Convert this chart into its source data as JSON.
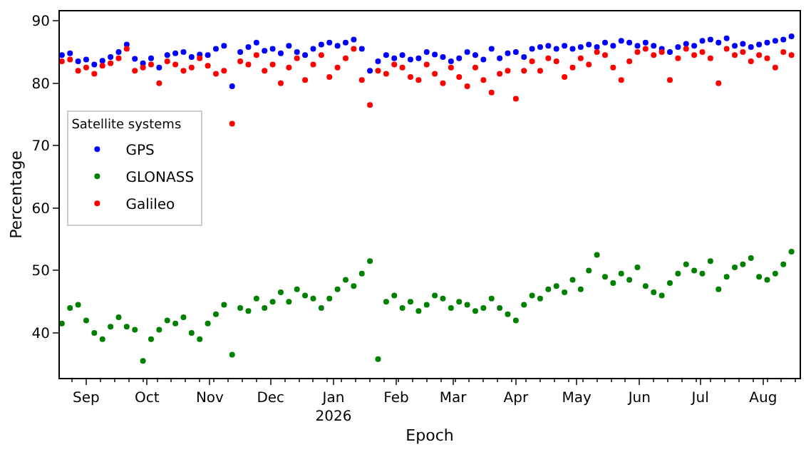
{
  "chart_data": {
    "type": "scatter",
    "xlabel": "Epoch",
    "ylabel": "Percentage",
    "legend_title": "Satellite systems",
    "legend": "top left",
    "grid": false,
    "marker": "circle",
    "xlim": [
      "2025-08-19",
      "2026-08-19"
    ],
    "xticks": [
      {
        "value": "2025-09-01",
        "label": "Sep"
      },
      {
        "value": "2025-10-01",
        "label": "Oct"
      },
      {
        "value": "2025-11-01",
        "label": "Nov"
      },
      {
        "value": "2025-12-01",
        "label": "Dec"
      },
      {
        "value": "2026-01-01",
        "label": "Jan\n2026"
      },
      {
        "value": "2026-02-01",
        "label": "Feb"
      },
      {
        "value": "2026-03-01",
        "label": "Mar"
      },
      {
        "value": "2026-04-01",
        "label": "Apr"
      },
      {
        "value": "2026-05-01",
        "label": "May"
      },
      {
        "value": "2026-06-01",
        "label": "Jun"
      },
      {
        "value": "2026-07-01",
        "label": "Jul"
      },
      {
        "value": "2026-08-01",
        "label": "Aug"
      }
    ],
    "ylim": [
      32.8,
      91.5
    ],
    "yticks": [
      40,
      50,
      60,
      70,
      80,
      90
    ],
    "x": [
      "2025-08-20",
      "2025-08-24",
      "2025-08-28",
      "2025-09-01",
      "2025-09-05",
      "2025-09-09",
      "2025-09-13",
      "2025-09-17",
      "2025-09-21",
      "2025-09-25",
      "2025-09-29",
      "2025-10-03",
      "2025-10-07",
      "2025-10-11",
      "2025-10-15",
      "2025-10-19",
      "2025-10-23",
      "2025-10-27",
      "2025-10-31",
      "2025-11-04",
      "2025-11-08",
      "2025-11-12",
      "2025-11-16",
      "2025-11-20",
      "2025-11-24",
      "2025-11-28",
      "2025-12-02",
      "2025-12-06",
      "2025-12-10",
      "2025-12-14",
      "2025-12-18",
      "2025-12-22",
      "2025-12-26",
      "2025-12-30",
      "2026-01-03",
      "2026-01-07",
      "2026-01-11",
      "2026-01-15",
      "2026-01-19",
      "2026-01-23",
      "2026-01-27",
      "2026-01-31",
      "2026-02-04",
      "2026-02-08",
      "2026-02-12",
      "2026-02-16",
      "2026-02-20",
      "2026-02-24",
      "2026-02-28",
      "2026-03-04",
      "2026-03-08",
      "2026-03-12",
      "2026-03-16",
      "2026-03-20",
      "2026-03-24",
      "2026-03-28",
      "2026-04-01",
      "2026-04-05",
      "2026-04-09",
      "2026-04-13",
      "2026-04-17",
      "2026-04-21",
      "2026-04-25",
      "2026-04-29",
      "2026-05-03",
      "2026-05-07",
      "2026-05-11",
      "2026-05-15",
      "2026-05-19",
      "2026-05-23",
      "2026-05-27",
      "2026-05-31",
      "2026-06-04",
      "2026-06-08",
      "2026-06-12",
      "2026-06-16",
      "2026-06-20",
      "2026-06-24",
      "2026-06-28",
      "2026-07-02",
      "2026-07-06",
      "2026-07-10",
      "2026-07-14",
      "2026-07-18",
      "2026-07-22",
      "2026-07-26",
      "2026-07-30",
      "2026-08-03",
      "2026-08-07",
      "2026-08-11",
      "2026-08-15"
    ],
    "series": [
      {
        "name": "GPS",
        "color": "#0000ff",
        "values": [
          84.5,
          84.8,
          83.5,
          83.8,
          83.0,
          83.6,
          84.2,
          85.0,
          86.2,
          83.9,
          83.2,
          84.0,
          82.5,
          84.5,
          84.8,
          85.0,
          84.2,
          84.6,
          84.5,
          85.5,
          86.0,
          79.5,
          85.0,
          85.8,
          86.5,
          85.2,
          85.5,
          84.8,
          86.0,
          85.0,
          84.5,
          85.5,
          86.2,
          86.5,
          86.0,
          86.5,
          87.0,
          85.5,
          82.0,
          83.5,
          84.5,
          84.0,
          84.5,
          83.8,
          84.0,
          85.0,
          84.6,
          84.2,
          83.5,
          84.0,
          85.0,
          84.5,
          83.8,
          85.5,
          84.0,
          84.8,
          85.0,
          84.2,
          85.5,
          85.8,
          86.0,
          85.5,
          86.0,
          85.5,
          85.8,
          86.2,
          85.8,
          86.5,
          86.0,
          86.8,
          86.5,
          86.0,
          86.5,
          86.0,
          85.5,
          85.0,
          85.8,
          86.3,
          86.0,
          86.8,
          87.0,
          86.5,
          87.2,
          86.0,
          86.3,
          85.8,
          86.2,
          86.5,
          86.8,
          87.0,
          87.5
        ]
      },
      {
        "name": "GLONASS",
        "color": "#008000",
        "values": [
          41.5,
          44.0,
          44.5,
          42.0,
          40.0,
          39.0,
          41.0,
          42.5,
          41.0,
          40.5,
          35.5,
          39.0,
          40.5,
          42.0,
          41.5,
          42.5,
          40.0,
          39.0,
          41.5,
          43.0,
          44.5,
          36.5,
          44.0,
          43.5,
          45.5,
          44.0,
          45.0,
          46.5,
          45.0,
          47.0,
          46.0,
          45.5,
          44.0,
          45.5,
          47.0,
          48.5,
          47.5,
          49.5,
          51.5,
          35.8,
          45.0,
          46.0,
          44.0,
          45.0,
          43.5,
          44.5,
          46.0,
          45.5,
          44.0,
          45.0,
          44.5,
          43.5,
          44.0,
          45.5,
          44.0,
          43.0,
          42.0,
          44.5,
          46.0,
          45.5,
          47.0,
          47.5,
          46.5,
          48.5,
          47.0,
          50.0,
          52.5,
          49.0,
          48.0,
          49.5,
          48.5,
          50.5,
          47.5,
          46.5,
          46.0,
          48.0,
          49.5,
          51.0,
          50.0,
          49.5,
          51.5,
          47.0,
          49.0,
          50.5,
          51.0,
          52.0,
          49.0,
          48.5,
          49.5,
          51.0,
          53.0
        ]
      },
      {
        "name": "Galileo",
        "color": "#ff0000",
        "values": [
          83.5,
          83.8,
          82.0,
          82.5,
          81.5,
          82.8,
          83.2,
          84.0,
          85.5,
          82.0,
          82.5,
          83.0,
          80.0,
          83.5,
          83.0,
          82.0,
          82.5,
          84.0,
          82.8,
          81.5,
          82.0,
          73.5,
          83.5,
          83.0,
          84.5,
          82.0,
          83.0,
          80.0,
          82.5,
          84.0,
          80.5,
          83.0,
          84.5,
          81.0,
          82.5,
          84.0,
          85.5,
          80.5,
          76.5,
          82.0,
          81.5,
          83.0,
          82.5,
          81.0,
          80.5,
          83.0,
          81.5,
          80.0,
          82.5,
          81.0,
          79.5,
          82.5,
          80.5,
          78.5,
          81.5,
          82.0,
          77.5,
          82.0,
          83.5,
          82.0,
          84.0,
          83.5,
          81.0,
          82.5,
          84.0,
          83.0,
          85.0,
          84.5,
          82.5,
          80.5,
          83.5,
          85.0,
          85.5,
          84.5,
          85.0,
          80.5,
          84.0,
          85.5,
          84.5,
          85.0,
          84.0,
          80.0,
          85.5,
          84.5,
          85.0,
          83.5,
          84.5,
          84.0,
          82.5,
          85.0,
          84.5
        ]
      }
    ]
  }
}
